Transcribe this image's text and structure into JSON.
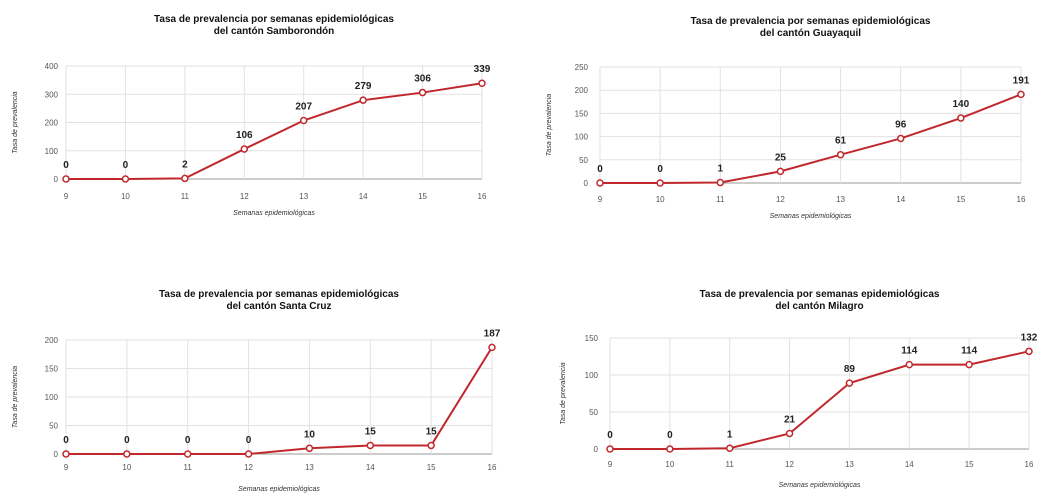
{
  "colors": {
    "series": "#c0282d",
    "grid": "#e2e2e2"
  },
  "chart_data": [
    {
      "type": "line",
      "title": [
        "Tasa de prevalencia por semanas epidemiológicas",
        "del cantón Samborondón"
      ],
      "xlabel": "Semanas epidemiológicas",
      "ylabel": "Tasa de prevalencia",
      "categories": [
        "9",
        "10",
        "11",
        "12",
        "13",
        "14",
        "15",
        "16"
      ],
      "tick_labels": [
        "9",
        "10",
        "11",
        "12",
        "13",
        "14",
        "15",
        "16"
      ],
      "values": [
        0,
        0,
        2,
        106,
        207,
        279,
        306,
        339
      ],
      "labels": [
        "0",
        "0",
        "2",
        "106",
        "207",
        "279",
        "306",
        "339"
      ],
      "ylim": [
        0,
        400
      ],
      "yticks": [
        0,
        100,
        200,
        300,
        400
      ],
      "grid": true,
      "legend": "none"
    },
    {
      "type": "line",
      "title": [
        "Tasa de prevalencia por semanas epidemiológicas",
        "del cantón Guayaquil"
      ],
      "xlabel": "Semanas epidemiológicas",
      "ylabel": "Tasa de prevalencia",
      "categories": [
        "9",
        "10",
        "11",
        "12",
        "13",
        "14",
        "15",
        "16"
      ],
      "tick_labels": [
        "9",
        "10",
        "11",
        "12",
        "13",
        "14",
        "15",
        "16"
      ],
      "values": [
        0,
        0,
        1,
        25,
        61,
        96,
        140,
        191
      ],
      "labels": [
        "0",
        "0",
        "1",
        "25",
        "61",
        "96",
        "140",
        "191"
      ],
      "ylim": [
        0,
        250
      ],
      "yticks": [
        0,
        50,
        100,
        150,
        200,
        250
      ],
      "grid": true,
      "legend": "none"
    },
    {
      "type": "line",
      "title": [
        "Tasa de prevalencia por semanas epidemiológicas",
        "del cantón Santa Cruz"
      ],
      "xlabel": "Semanas epidemiológicas",
      "ylabel": "Tasa de prevalencia",
      "categories": [
        "9",
        "10",
        "11",
        "12",
        "13",
        "14",
        "15",
        "16"
      ],
      "tick_labels": [
        "9",
        "10",
        "11",
        "12",
        "13",
        "14",
        "15",
        "16"
      ],
      "values": [
        0,
        0,
        0,
        0,
        10,
        15,
        15,
        187
      ],
      "labels": [
        "0",
        "0",
        "0",
        "0",
        "10",
        "15",
        "15",
        "187"
      ],
      "ylim": [
        0,
        200
      ],
      "yticks": [
        0,
        50,
        100,
        150,
        200
      ],
      "grid": true,
      "legend": "none"
    },
    {
      "type": "line",
      "title": [
        "Tasa de prevalencia por semanas epidemiológicas",
        "del cantón Milagro"
      ],
      "xlabel": "Semanas epidemiológicas",
      "ylabel": "Tasa de prevalencia",
      "categories": [
        "9",
        "10",
        "11",
        "12",
        "13",
        "14",
        "15",
        "16"
      ],
      "tick_labels": [
        "9",
        "10",
        "11",
        "12",
        "13",
        "14",
        "15",
        "16"
      ],
      "values": [
        0,
        0,
        1,
        21,
        89,
        114,
        114,
        132
      ],
      "labels": [
        "0",
        "0",
        "1",
        "21",
        "89",
        "114",
        "114",
        "132"
      ],
      "ylim": [
        0,
        150
      ],
      "yticks": [
        0,
        50,
        100,
        150
      ],
      "grid": true,
      "legend": "none"
    }
  ]
}
